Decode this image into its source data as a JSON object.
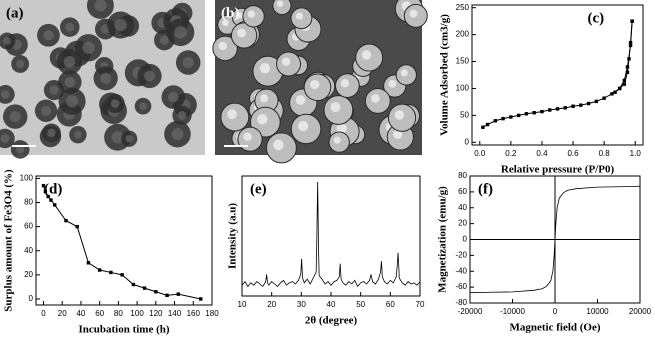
{
  "image_panels": [
    {
      "label": "(a)"
    },
    {
      "label": "(b)"
    }
  ],
  "chart_data": [
    {
      "type": "line",
      "label": "(c)",
      "xlabel": "Relative pressure (P/P0)",
      "ylabel": "Volume Adsorbed (cm3/g)",
      "xlim": [
        -0.05,
        1.05
      ],
      "xticks": [
        {
          "value": 0,
          "label": "0.0"
        },
        0.2,
        0.4,
        0.6,
        0.8,
        {
          "value": 1,
          "label": "1.0"
        }
      ],
      "ylim": [
        -5,
        255
      ],
      "yticks": [
        0,
        50,
        100,
        150,
        200,
        250
      ],
      "markers": true,
      "series": [
        {
          "color": "#000000",
          "x": [
            0.02,
            0.05,
            0.1,
            0.15,
            0.2,
            0.25,
            0.3,
            0.35,
            0.4,
            0.45,
            0.5,
            0.55,
            0.6,
            0.65,
            0.7,
            0.75,
            0.8,
            0.85,
            0.9,
            0.93,
            0.95,
            0.97,
            0.98
          ],
          "values": [
            28,
            33,
            40,
            44,
            47,
            50,
            53,
            55,
            57,
            60,
            62,
            64,
            67,
            69,
            72,
            76,
            82,
            90,
            100,
            115,
            140,
            180,
            225
          ]
        },
        {
          "color": "#000000",
          "x": [
            0.98,
            0.97,
            0.96,
            0.95,
            0.93,
            0.9,
            0.87
          ],
          "values": [
            225,
            185,
            155,
            130,
            108,
            100,
            93
          ]
        }
      ]
    },
    {
      "type": "line",
      "label": "(d)",
      "xlabel": "Incubation time (h)",
      "ylabel": "Surplus amount of Fe3O4 (%)",
      "xlim": [
        -8,
        180
      ],
      "xticks": [
        0,
        20,
        40,
        60,
        80,
        100,
        120,
        140,
        160,
        180
      ],
      "ylim": [
        -5,
        102
      ],
      "yticks": [
        0,
        20,
        40,
        60,
        80,
        100
      ],
      "markers": true,
      "series": [
        {
          "color": "#000000",
          "x": [
            0,
            2,
            5,
            8,
            12,
            24,
            36,
            48,
            60,
            72,
            84,
            96,
            108,
            120,
            132,
            144,
            168
          ],
          "values": [
            94,
            89,
            85,
            82,
            78,
            65,
            60,
            30,
            24,
            22,
            20,
            12,
            9,
            6,
            3,
            4,
            0
          ]
        }
      ]
    },
    {
      "type": "line",
      "label": "(e)",
      "xlabel": "2θ (degree)",
      "ylabel": "Intensity (a.u)",
      "xlim": [
        10,
        70
      ],
      "xticks": [
        10,
        20,
        30,
        40,
        50,
        60,
        70
      ],
      "ylim": [
        0,
        100
      ],
      "markers": false,
      "series": [
        {
          "color": "#000000",
          "x": [
            10,
            11,
            12,
            13,
            14,
            15,
            16,
            17,
            18,
            18.3,
            18.6,
            19,
            20,
            21,
            22,
            23,
            24,
            25,
            26,
            27,
            28,
            29,
            29.8,
            30.1,
            30.4,
            31,
            32,
            33,
            34,
            35,
            35.2,
            35.5,
            35.8,
            36,
            37,
            38,
            39,
            40,
            41,
            42,
            42.8,
            43.1,
            43.4,
            44,
            45,
            46,
            47,
            48,
            49,
            50,
            51,
            52,
            53,
            53.5,
            54,
            55,
            56,
            56.7,
            57,
            57.3,
            58,
            59,
            60,
            61,
            62,
            62.3,
            62.6,
            62.9,
            63,
            64,
            65,
            66,
            67,
            68,
            69,
            70
          ],
          "values": [
            9,
            12,
            8,
            11,
            9,
            12,
            10,
            8,
            12,
            18,
            11,
            9,
            12,
            10,
            8,
            11,
            13,
            9,
            11,
            12,
            10,
            13,
            18,
            31,
            15,
            11,
            14,
            10,
            15,
            20,
            45,
            95,
            40,
            17,
            14,
            10,
            12,
            9,
            12,
            13,
            16,
            27,
            14,
            11,
            9,
            12,
            10,
            13,
            8,
            11,
            12,
            10,
            13,
            18,
            12,
            10,
            14,
            20,
            29,
            16,
            12,
            10,
            13,
            11,
            16,
            25,
            36,
            22,
            15,
            11,
            9,
            12,
            10,
            11,
            9,
            12
          ]
        }
      ]
    },
    {
      "type": "line",
      "label": "(f)",
      "xlabel": "Magnetic field (Oe)",
      "ylabel": "Magnetization (emu/g)",
      "xlim": [
        -20000,
        20000
      ],
      "xticks": [
        -20000,
        -10000,
        0,
        10000,
        20000
      ],
      "ylim": [
        -80,
        80
      ],
      "yticks": [
        -80,
        -60,
        -40,
        -20,
        0,
        20,
        40,
        60,
        80
      ],
      "markers": false,
      "zero_lines": true,
      "series": [
        {
          "color": "#000000",
          "x": [
            -20000,
            -15000,
            -10000,
            -5000,
            -3000,
            -2000,
            -1000,
            -500,
            -200,
            0,
            200,
            500,
            1000,
            2000,
            3000,
            5000,
            10000,
            15000,
            20000
          ],
          "values": [
            -67,
            -66.5,
            -66,
            -64,
            -62,
            -59,
            -52,
            -40,
            -20,
            0,
            20,
            40,
            52,
            59,
            62,
            64,
            66,
            66.5,
            67
          ]
        }
      ]
    }
  ]
}
